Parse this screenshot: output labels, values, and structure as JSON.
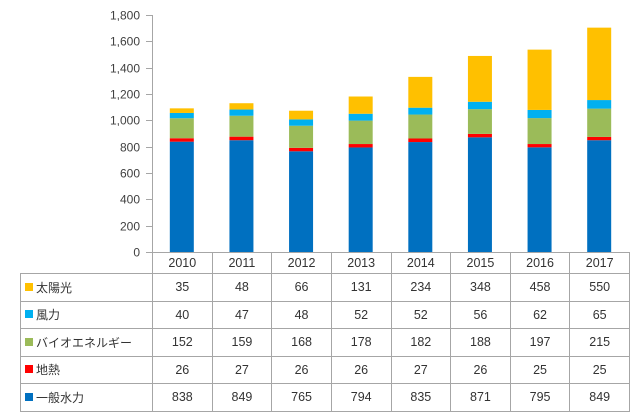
{
  "chart_data": {
    "type": "bar",
    "stacked": true,
    "title": "",
    "xlabel": "",
    "ylabel": "",
    "ylim": [
      0,
      1800
    ],
    "yticks": [
      0,
      200,
      400,
      600,
      800,
      1000,
      1200,
      1400,
      1600,
      1800
    ],
    "ytick_labels": [
      "0",
      "200",
      "400",
      "600",
      "800",
      "1,000",
      "1,200",
      "1,400",
      "1,600",
      "1,800"
    ],
    "grid": false,
    "legend": "data-table",
    "categories": [
      "2010",
      "2011",
      "2012",
      "2013",
      "2014",
      "2015",
      "2016",
      "2017"
    ],
    "series": [
      {
        "name": "一般水力",
        "color": "#0070c0",
        "values": [
          838,
          849,
          765,
          794,
          835,
          871,
          795,
          849
        ]
      },
      {
        "name": "地熱",
        "color": "#ff0000",
        "values": [
          26,
          27,
          26,
          26,
          27,
          26,
          25,
          25
        ]
      },
      {
        "name": "バイオエネルギー",
        "color": "#9bbb59",
        "values": [
          152,
          159,
          168,
          178,
          182,
          188,
          197,
          215
        ]
      },
      {
        "name": "風力",
        "color": "#00b0f0",
        "values": [
          40,
          47,
          48,
          52,
          52,
          56,
          62,
          65
        ]
      },
      {
        "name": "太陽光",
        "color": "#ffc000",
        "values": [
          35,
          48,
          66,
          131,
          234,
          348,
          458,
          550
        ]
      }
    ],
    "table_row_order": [
      "太陽光",
      "風力",
      "バイオエネルギー",
      "地熱",
      "一般水力"
    ]
  }
}
